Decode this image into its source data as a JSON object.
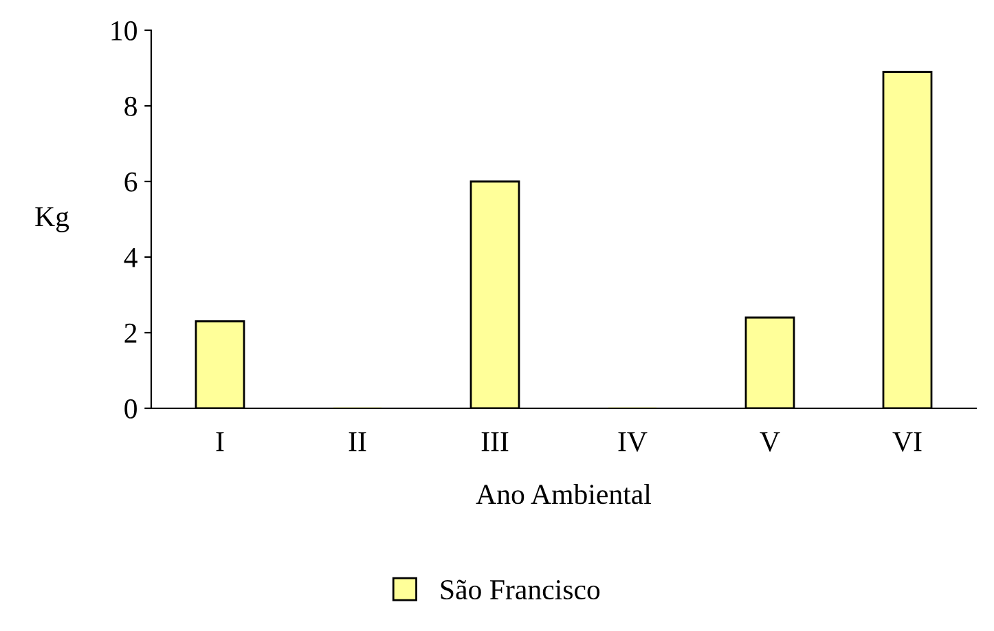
{
  "chart_data": {
    "type": "bar",
    "xlabel": "Ano Ambiental",
    "ylabel": "Kg",
    "categories": [
      "I",
      "II",
      "III",
      "IV",
      "V",
      "VI"
    ],
    "series": [
      {
        "name": "São Francisco",
        "color": "#ffff99",
        "values": [
          2.3,
          0,
          6.0,
          0,
          2.4,
          8.9
        ]
      }
    ],
    "ylim": [
      0,
      10
    ],
    "yticks": [
      0,
      2,
      4,
      6,
      8,
      10
    ],
    "grid": false,
    "legend": "bottom"
  }
}
